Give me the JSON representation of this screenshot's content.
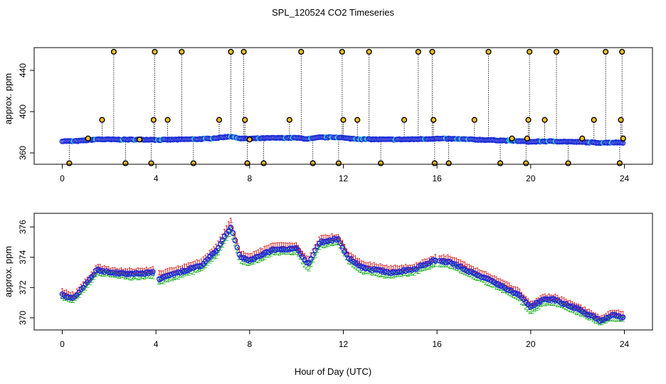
{
  "title": "SPL_120524  CO2 Timeseries",
  "shared_xlabel": "Hour of Day (UTC)",
  "chart_data": [
    {
      "type": "scatter",
      "panel": "top",
      "title": "",
      "xlabel": "",
      "ylabel": "approx. ppm",
      "xlim": [
        -1.2,
        25.2
      ],
      "ylim": [
        349,
        462
      ],
      "xticks": [
        0,
        4,
        8,
        12,
        16,
        20,
        24
      ],
      "yticks": [
        360,
        400,
        440
      ],
      "grid": false,
      "legend": "none",
      "colors": {
        "points": "#1f2fd6",
        "points_alt": "#22c8d0",
        "outlier": "#000000",
        "outlier_fill": "#f0c020"
      },
      "main_series_knots": [
        [
          0,
          371.5
        ],
        [
          0.5,
          371.3
        ],
        [
          1.0,
          372.2
        ],
        [
          1.5,
          373.2
        ],
        [
          2.0,
          373.0
        ],
        [
          3.0,
          372.9
        ],
        [
          3.9,
          373.0
        ],
        [
          4.0,
          372.5
        ],
        [
          5.0,
          373.0
        ],
        [
          6.0,
          373.5
        ],
        [
          6.6,
          374.5
        ],
        [
          7.2,
          376.0
        ],
        [
          7.6,
          374.0
        ],
        [
          8.0,
          373.8
        ],
        [
          9.0,
          374.5
        ],
        [
          10.0,
          374.6
        ],
        [
          10.5,
          373.5
        ],
        [
          11.0,
          375.0
        ],
        [
          11.8,
          375.2
        ],
        [
          12.2,
          374.0
        ],
        [
          12.8,
          373.3
        ],
        [
          14.0,
          373.0
        ],
        [
          15.0,
          373.2
        ],
        [
          15.9,
          373.8
        ],
        [
          16.5,
          373.7
        ],
        [
          17.5,
          373.0
        ],
        [
          18.5,
          372.3
        ],
        [
          19.5,
          371.5
        ],
        [
          20.0,
          370.7
        ],
        [
          20.5,
          371.2
        ],
        [
          21.0,
          371.2
        ],
        [
          22.0,
          370.6
        ],
        [
          23.0,
          369.8
        ],
        [
          23.5,
          370.2
        ],
        [
          23.9,
          370.0
        ]
      ],
      "outliers": [
        {
          "x": 0.3,
          "y": 350
        },
        {
          "x": 1.1,
          "y": 374
        },
        {
          "x": 1.7,
          "y": 392
        },
        {
          "x": 2.2,
          "y": 458
        },
        {
          "x": 2.7,
          "y": 350
        },
        {
          "x": 3.3,
          "y": 373
        },
        {
          "x": 3.8,
          "y": 350
        },
        {
          "x": 3.9,
          "y": 392
        },
        {
          "x": 3.95,
          "y": 458
        },
        {
          "x": 4.5,
          "y": 392
        },
        {
          "x": 5.1,
          "y": 458
        },
        {
          "x": 5.6,
          "y": 350
        },
        {
          "x": 6.7,
          "y": 392
        },
        {
          "x": 7.2,
          "y": 458
        },
        {
          "x": 7.75,
          "y": 458
        },
        {
          "x": 7.8,
          "y": 392
        },
        {
          "x": 7.9,
          "y": 350
        },
        {
          "x": 8.0,
          "y": 373
        },
        {
          "x": 8.6,
          "y": 350
        },
        {
          "x": 9.7,
          "y": 392
        },
        {
          "x": 10.2,
          "y": 458
        },
        {
          "x": 10.7,
          "y": 350
        },
        {
          "x": 11.8,
          "y": 350
        },
        {
          "x": 11.95,
          "y": 458
        },
        {
          "x": 12.0,
          "y": 392
        },
        {
          "x": 12.6,
          "y": 392
        },
        {
          "x": 13.1,
          "y": 458
        },
        {
          "x": 13.6,
          "y": 350
        },
        {
          "x": 14.6,
          "y": 392
        },
        {
          "x": 15.2,
          "y": 458
        },
        {
          "x": 15.8,
          "y": 458
        },
        {
          "x": 15.85,
          "y": 392
        },
        {
          "x": 15.9,
          "y": 350
        },
        {
          "x": 16.5,
          "y": 350
        },
        {
          "x": 17.6,
          "y": 392
        },
        {
          "x": 18.2,
          "y": 458
        },
        {
          "x": 18.7,
          "y": 350
        },
        {
          "x": 19.2,
          "y": 374
        },
        {
          "x": 19.8,
          "y": 350
        },
        {
          "x": 19.85,
          "y": 374
        },
        {
          "x": 19.9,
          "y": 392
        },
        {
          "x": 19.95,
          "y": 458
        },
        {
          "x": 20.6,
          "y": 392
        },
        {
          "x": 21.1,
          "y": 458
        },
        {
          "x": 21.6,
          "y": 350
        },
        {
          "x": 22.2,
          "y": 374
        },
        {
          "x": 22.7,
          "y": 392
        },
        {
          "x": 23.2,
          "y": 458
        },
        {
          "x": 23.8,
          "y": 350
        },
        {
          "x": 23.85,
          "y": 392
        },
        {
          "x": 23.9,
          "y": 458
        },
        {
          "x": 23.95,
          "y": 374
        }
      ]
    },
    {
      "type": "scatter",
      "panel": "bottom",
      "title": "",
      "xlabel": "Hour of Day (UTC)",
      "ylabel": "approx. ppm",
      "xlim": [
        -1.2,
        25.2
      ],
      "ylim": [
        369.2,
        376.9
      ],
      "xticks": [
        0,
        4,
        8,
        12,
        16,
        20,
        24
      ],
      "yticks": [
        370,
        372,
        374,
        376
      ],
      "grid": false,
      "legend": "none",
      "marker_note": "points drawn as numerals 1, 2, 3 plus open circles",
      "colors": {
        "series1": "#d42020",
        "series2": "#20b020",
        "series3": "#2028d8",
        "circles": "#2028d8"
      },
      "gaps": [
        [
          3.95,
          4.05
        ],
        [
          15.95,
          16.05
        ]
      ],
      "series": [
        {
          "name": "1",
          "knots": [
            [
              0,
              371.8
            ],
            [
              0.5,
              371.5
            ],
            [
              1.0,
              372.4
            ],
            [
              1.5,
              373.4
            ],
            [
              2.0,
              373.2
            ],
            [
              3.0,
              373.1
            ],
            [
              3.9,
              373.2
            ],
            [
              4.0,
              372.9
            ],
            [
              5.0,
              373.3
            ],
            [
              6.0,
              373.8
            ],
            [
              6.6,
              374.8
            ],
            [
              7.2,
              376.4
            ],
            [
              7.6,
              374.3
            ],
            [
              8.0,
              374.1
            ],
            [
              9.0,
              374.8
            ],
            [
              10.0,
              374.8
            ],
            [
              10.5,
              373.8
            ],
            [
              11.0,
              375.3
            ],
            [
              11.8,
              375.4
            ],
            [
              12.2,
              374.3
            ],
            [
              12.8,
              373.6
            ],
            [
              14.0,
              373.3
            ],
            [
              15.0,
              373.4
            ],
            [
              15.9,
              374.0
            ],
            [
              16.5,
              374.0
            ],
            [
              17.5,
              373.3
            ],
            [
              18.5,
              372.6
            ],
            [
              19.5,
              371.8
            ],
            [
              20.0,
              370.9
            ],
            [
              20.5,
              371.4
            ],
            [
              21.0,
              371.4
            ],
            [
              22.0,
              370.8
            ],
            [
              23.0,
              370.0
            ],
            [
              23.5,
              370.4
            ],
            [
              23.9,
              370.3
            ]
          ]
        },
        {
          "name": "2",
          "knots": [
            [
              0,
              371.4
            ],
            [
              0.5,
              371.2
            ],
            [
              1.0,
              372.0
            ],
            [
              1.5,
              373.0
            ],
            [
              2.0,
              372.9
            ],
            [
              3.0,
              372.7
            ],
            [
              3.9,
              372.8
            ],
            [
              4.0,
              372.3
            ],
            [
              5.0,
              372.8
            ],
            [
              6.0,
              373.3
            ],
            [
              6.6,
              374.2
            ],
            [
              7.2,
              375.8
            ],
            [
              7.6,
              373.8
            ],
            [
              8.0,
              373.6
            ],
            [
              9.0,
              374.3
            ],
            [
              10.0,
              374.4
            ],
            [
              10.5,
              373.2
            ],
            [
              11.0,
              374.8
            ],
            [
              11.8,
              375.0
            ],
            [
              12.2,
              373.8
            ],
            [
              12.8,
              373.1
            ],
            [
              14.0,
              372.8
            ],
            [
              15.0,
              373.0
            ],
            [
              15.9,
              373.6
            ],
            [
              16.5,
              373.5
            ],
            [
              17.5,
              372.8
            ],
            [
              18.5,
              372.1
            ],
            [
              19.5,
              371.3
            ],
            [
              20.0,
              370.4
            ],
            [
              20.5,
              371.0
            ],
            [
              21.0,
              371.0
            ],
            [
              22.0,
              370.4
            ],
            [
              23.0,
              369.7
            ],
            [
              23.5,
              370.0
            ],
            [
              23.9,
              369.9
            ]
          ]
        },
        {
          "name": "3",
          "knots": [
            [
              0,
              371.5
            ],
            [
              0.5,
              371.3
            ],
            [
              1.0,
              372.2
            ],
            [
              1.5,
              373.2
            ],
            [
              2.0,
              373.0
            ],
            [
              3.0,
              372.9
            ],
            [
              3.9,
              373.0
            ],
            [
              4.0,
              372.5
            ],
            [
              5.0,
              373.0
            ],
            [
              6.0,
              373.5
            ],
            [
              6.6,
              374.5
            ],
            [
              7.2,
              376.0
            ],
            [
              7.6,
              374.0
            ],
            [
              8.0,
              373.8
            ],
            [
              9.0,
              374.5
            ],
            [
              10.0,
              374.6
            ],
            [
              10.5,
              373.5
            ],
            [
              11.0,
              375.0
            ],
            [
              11.8,
              375.2
            ],
            [
              12.2,
              374.0
            ],
            [
              12.8,
              373.3
            ],
            [
              14.0,
              373.0
            ],
            [
              15.0,
              373.2
            ],
            [
              15.9,
              373.8
            ],
            [
              16.5,
              373.7
            ],
            [
              17.5,
              373.0
            ],
            [
              18.5,
              372.3
            ],
            [
              19.5,
              371.5
            ],
            [
              20.0,
              370.7
            ],
            [
              20.5,
              371.2
            ],
            [
              21.0,
              371.2
            ],
            [
              22.0,
              370.6
            ],
            [
              23.0,
              369.8
            ],
            [
              23.5,
              370.2
            ],
            [
              23.9,
              370.0
            ]
          ]
        }
      ]
    }
  ]
}
